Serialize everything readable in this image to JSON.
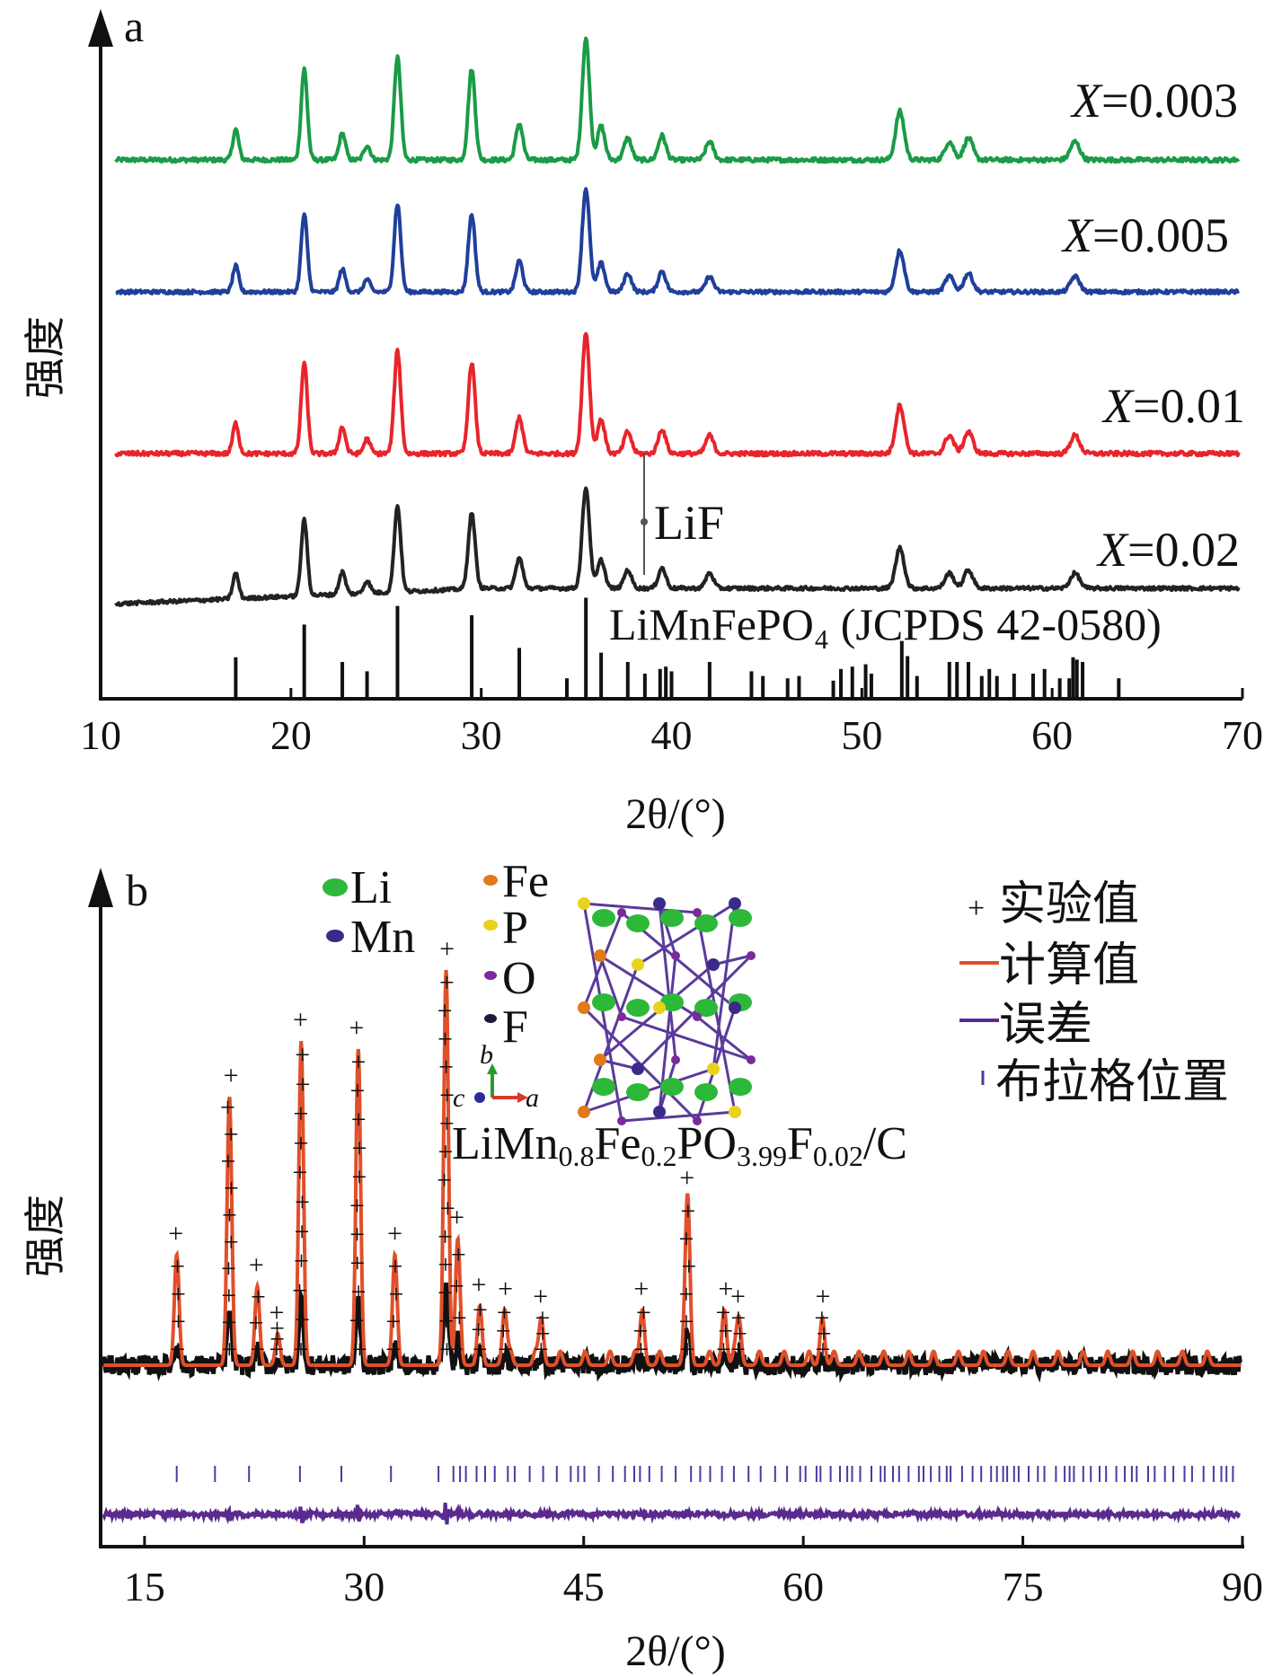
{
  "panel_a": {
    "panel_label": "a",
    "ylabel": "强度",
    "xlabel": "2θ/(°)",
    "reference_label": "LiMnFePO₄ (JCPDS 42-0580)",
    "lif_label": "LiF",
    "series_labels": [
      {
        "prefix": "X",
        "value": "=0.003"
      },
      {
        "prefix": "X",
        "value": "=0.005"
      },
      {
        "prefix": "X",
        "value": "=0.01"
      },
      {
        "prefix": "X",
        "value": "=0.02"
      }
    ]
  },
  "panel_b": {
    "panel_label": "b",
    "ylabel": "强度",
    "xlabel": "2θ/(°)",
    "formula": {
      "a": "LiMn",
      "s1": "0.8",
      "b": "Fe",
      "s2": "0.2",
      "c": "PO",
      "s3": "3.99",
      "d": "F",
      "s4": "0.02",
      "e": "/C"
    },
    "atoms": [
      "Li",
      "Mn",
      "Fe",
      "P",
      "O",
      "F"
    ],
    "axes_triad": [
      "b",
      "c",
      "a"
    ],
    "legend": [
      "实验值",
      "计算值",
      "误差",
      "布拉格位置"
    ]
  },
  "colors": {
    "x0003": "#1a9b46",
    "x0005": "#1f3f9a",
    "x001": "#e8242b",
    "x002": "#222222",
    "calc": "#e0502a",
    "diff": "#5b2a8e",
    "bragg": "#4a3aa0",
    "li": "#2db83a",
    "mn": "#3a2a8a",
    "fe": "#e07a1a",
    "p": "#e8d21a",
    "o": "#7a2a9a",
    "f": "#1a1a3a"
  },
  "chart_data": [
    {
      "type": "line",
      "x_range": [
        10,
        70
      ],
      "xticks": [
        10,
        20,
        30,
        40,
        50,
        60,
        70
      ],
      "peaks_2theta": [
        17.1,
        20.7,
        22.7,
        24.0,
        25.6,
        29.5,
        32.0,
        35.5,
        36.3,
        37.7,
        39.5,
        42.0,
        52.0,
        54.6,
        55.6,
        61.2
      ],
      "peak_relative_intensity": [
        0.25,
        0.75,
        0.22,
        0.12,
        0.85,
        0.75,
        0.3,
        1.0,
        0.28,
        0.18,
        0.2,
        0.15,
        0.4,
        0.15,
        0.18,
        0.15
      ],
      "series": [
        {
          "name": "X=0.003"
        },
        {
          "name": "X=0.005"
        },
        {
          "name": "X=0.01"
        },
        {
          "name": "X=0.02"
        }
      ],
      "lif_marker_2theta": 38.6,
      "reference_sticks_2theta": [
        17.1,
        20.7,
        22.7,
        24.0,
        25.6,
        29.5,
        32.0,
        34.5,
        35.5,
        36.3,
        37.7,
        38.6,
        39.4,
        39.7,
        40.0,
        42.0,
        44.2,
        44.8,
        46.1,
        46.7,
        48.5,
        48.9,
        49.5,
        50.2,
        50.5,
        52.1,
        52.4,
        52.9,
        54.6,
        55.0,
        55.6,
        56.3,
        56.7,
        57.1,
        58.0,
        59.0,
        59.6,
        60.4,
        60.9,
        61.1,
        61.3,
        61.6,
        63.5
      ],
      "reference_stick_heights": [
        0.34,
        0.62,
        0.3,
        0.22,
        0.78,
        0.7,
        0.42,
        0.16,
        0.85,
        0.38,
        0.3,
        0.2,
        0.24,
        0.26,
        0.22,
        0.3,
        0.22,
        0.18,
        0.16,
        0.18,
        0.14,
        0.24,
        0.26,
        0.28,
        0.2,
        0.48,
        0.35,
        0.18,
        0.3,
        0.3,
        0.3,
        0.18,
        0.24,
        0.18,
        0.2,
        0.2,
        0.24,
        0.16,
        0.16,
        0.34,
        0.32,
        0.3,
        0.16
      ]
    },
    {
      "type": "line",
      "x_range": [
        12,
        90
      ],
      "xticks": [
        15,
        30,
        45,
        60,
        75,
        90
      ],
      "series": [
        {
          "name": "实验值"
        },
        {
          "name": "计算值"
        },
        {
          "name": "误差"
        },
        {
          "name": "布拉格位置"
        }
      ],
      "peaks_2theta": [
        17.2,
        20.8,
        22.7,
        24.1,
        25.7,
        29.6,
        32.1,
        35.6,
        36.4,
        37.9,
        39.6,
        42.1,
        49.0,
        52.1,
        54.6,
        55.6,
        61.3
      ],
      "peak_relative_intensity": [
        0.28,
        0.68,
        0.2,
        0.08,
        0.82,
        0.8,
        0.28,
        1.0,
        0.32,
        0.15,
        0.14,
        0.12,
        0.14,
        0.42,
        0.14,
        0.12,
        0.12
      ]
    }
  ]
}
